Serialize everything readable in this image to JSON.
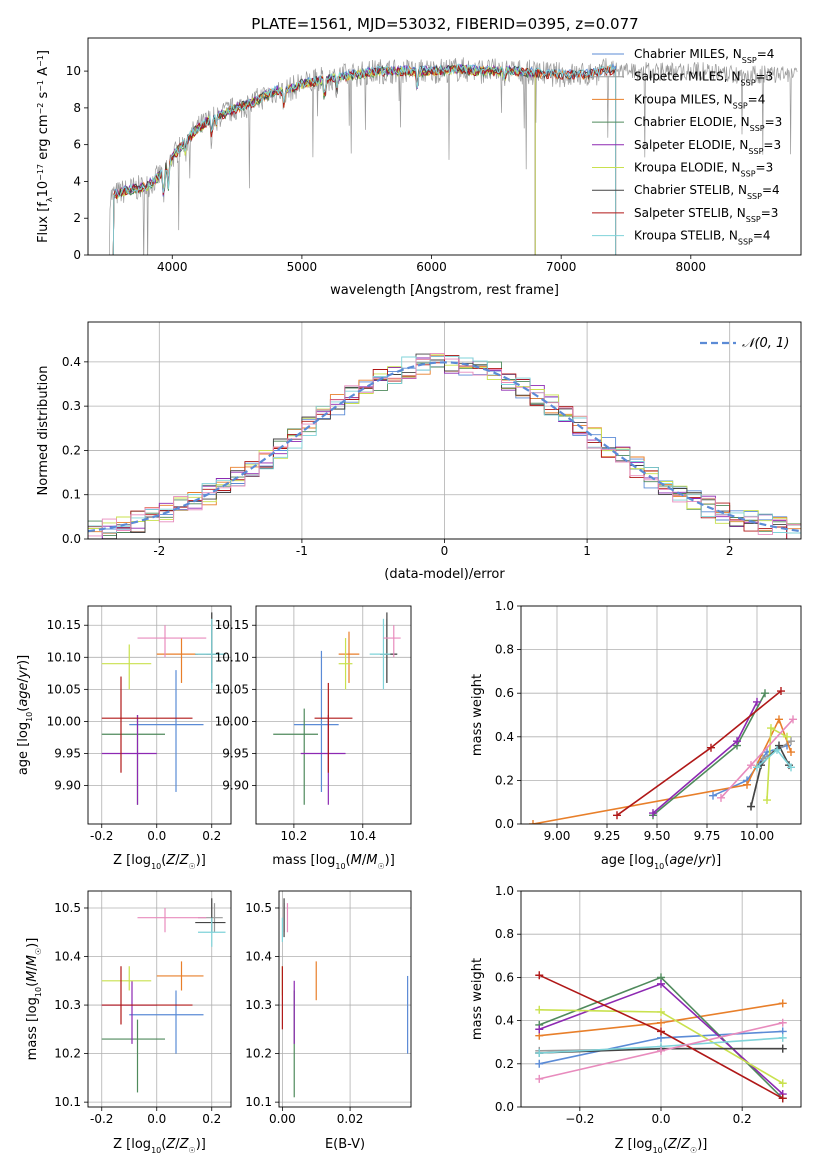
{
  "figure": {
    "title": "PLATE=1561, MJD=53032, FIBERID=0395, z=0.077"
  },
  "colors": {
    "chabrier_miles": "#5b8bd6",
    "salpeter_miles": "#9a9a9a",
    "kroupa_miles": "#e87f2a",
    "chabrier_elodie": "#4f8a5c",
    "salpeter_elodie": "#8d29b2",
    "kroupa_elodie": "#c9e14e",
    "chabrier_stelib": "#444444",
    "salpeter_stelib": "#b01818",
    "kroupa_stelib": "#7fd3d9",
    "pink": "#e88bbd",
    "normal_curve": "#5b8bd6"
  },
  "chart_data": [
    {
      "type": "line",
      "panel": "spectrum",
      "title": "PLATE=1561, MJD=53032, FIBERID=0395, z=0.077",
      "xlabel": "wavelength [Angstrom, rest frame]",
      "ylabel": "Flux [fλ 10⁻¹⁷ erg cm⁻² s⁻¹ A⁻¹]",
      "xlim": [
        3350,
        8850
      ],
      "ylim": [
        0,
        11.8
      ],
      "xticks": [
        4000,
        5000,
        6000,
        7000,
        8000
      ],
      "yticks": [
        0,
        2,
        4,
        6,
        8,
        10
      ],
      "legend_position": "right",
      "series": [
        {
          "name": "Chabrier MILES, N_SSP=4",
          "color_key": "chabrier_miles"
        },
        {
          "name": "Salpeter MILES, N_SSP=3",
          "color_key": "salpeter_miles"
        },
        {
          "name": "Kroupa MILES, N_SSP=4",
          "color_key": "kroupa_miles"
        },
        {
          "name": "Chabrier ELODIE, N_SSP=3",
          "color_key": "chabrier_elodie"
        },
        {
          "name": "Salpeter ELODIE, N_SSP=3",
          "color_key": "salpeter_elodie"
        },
        {
          "name": "Kroupa ELODIE, N_SSP=3",
          "color_key": "kroupa_elodie"
        },
        {
          "name": "Chabrier STELIB, N_SSP=4",
          "color_key": "chabrier_stelib"
        },
        {
          "name": "Salpeter STELIB, N_SSP=3",
          "color_key": "salpeter_stelib"
        },
        {
          "name": "Kroupa STELIB, N_SSP=4",
          "color_key": "kroupa_stelib"
        }
      ],
      "continuum": {
        "x": [
          3520,
          3600,
          3700,
          3800,
          3900,
          4000,
          4100,
          4200,
          4300,
          4400,
          4500,
          4600,
          4700,
          4800,
          4900,
          5000,
          5200,
          5400,
          5600,
          5800,
          6000,
          6200,
          6400,
          6600,
          6800,
          7000,
          7200,
          7400
        ],
        "y": [
          3.2,
          3.4,
          3.6,
          3.7,
          4.3,
          5.3,
          6.2,
          6.9,
          7.4,
          7.7,
          8.0,
          8.2,
          8.6,
          8.9,
          9.0,
          9.3,
          9.6,
          9.8,
          10.0,
          10.0,
          10.0,
          10.1,
          10.0,
          10.0,
          9.9,
          9.8,
          9.8,
          10.1
        ]
      }
    },
    {
      "type": "histogram",
      "panel": "residuals",
      "xlabel": "(data-model)/error",
      "ylabel": "Normed distribution",
      "xlim": [
        -2.5,
        2.5
      ],
      "ylim": [
        0,
        0.49
      ],
      "xticks": [
        -2,
        -1,
        0,
        1,
        2
      ],
      "yticks": [
        0.0,
        0.1,
        0.2,
        0.3,
        0.4
      ],
      "grid": true,
      "legend": [
        {
          "name": "𝒩(0, 1)",
          "style": "dashed",
          "color_key": "normal_curve"
        }
      ],
      "legend_position": "top-right",
      "bin_width": 0.1
    },
    {
      "type": "scatter",
      "panel": "age_vs_Z",
      "xlabel": "Z [log10(Z/Z☉)]",
      "ylabel": "age [log10(age/yr)]",
      "xlim": [
        -0.25,
        0.27
      ],
      "ylim": [
        9.84,
        10.18
      ],
      "xticks": [
        -0.2,
        0.0,
        0.2
      ],
      "yticks": [
        9.9,
        9.95,
        10.0,
        10.05,
        10.1,
        10.15
      ],
      "grid": true,
      "points": [
        {
          "c": "chabrier_miles",
          "x": 0.07,
          "y": 9.995,
          "xe": [
            -0.1,
            0.17
          ],
          "ye": [
            9.89,
            10.08
          ]
        },
        {
          "c": "salpeter_miles",
          "x": 0.2,
          "y": 10.105,
          "xe": [
            0.18,
            0.22
          ],
          "ye": [
            10.06,
            10.17
          ]
        },
        {
          "c": "kroupa_miles",
          "x": 0.09,
          "y": 10.105,
          "xe": [
            0.0,
            0.15
          ],
          "ye": [
            10.06,
            10.13
          ]
        },
        {
          "c": "chabrier_elodie",
          "x": -0.07,
          "y": 9.98,
          "xe": [
            -0.2,
            0.03
          ],
          "ye": [
            9.87,
            10.01
          ]
        },
        {
          "c": "salpeter_elodie",
          "x": -0.07,
          "y": 9.95,
          "xe": [
            -0.2,
            0.0
          ],
          "ye": [
            9.87,
            10.01
          ]
        },
        {
          "c": "kroupa_elodie",
          "x": -0.1,
          "y": 10.09,
          "xe": [
            -0.2,
            -0.02
          ],
          "ye": [
            10.05,
            10.12
          ]
        },
        {
          "c": "chabrier_stelib",
          "x": 0.2,
          "y": 10.105,
          "xe": [
            0.14,
            0.25
          ],
          "ye": [
            10.06,
            10.17
          ]
        },
        {
          "c": "salpeter_stelib",
          "x": -0.13,
          "y": 10.005,
          "xe": [
            -0.2,
            0.13
          ],
          "ye": [
            9.92,
            10.07
          ]
        },
        {
          "c": "kroupa_stelib",
          "x": 0.2,
          "y": 10.105,
          "xe": [
            0.14,
            0.25
          ],
          "ye": [
            10.05,
            10.16
          ]
        },
        {
          "c": "pink",
          "x": 0.03,
          "y": 10.13,
          "xe": [
            -0.07,
            0.18
          ],
          "ye": [
            10.1,
            10.15
          ]
        }
      ]
    },
    {
      "type": "scatter",
      "panel": "age_vs_mass",
      "xlabel": "mass [log10(M/M☉)]",
      "ylabel": "",
      "xlim": [
        10.09,
        10.54
      ],
      "ylim": [
        9.84,
        10.18
      ],
      "xticks": [
        10.2,
        10.4
      ],
      "yticks": [
        9.9,
        9.95,
        10.0,
        10.05,
        10.1,
        10.15
      ],
      "grid": true,
      "points": [
        {
          "c": "chabrier_miles",
          "x": 10.28,
          "y": 9.995,
          "xe": [
            10.2,
            10.33
          ],
          "ye": [
            9.89,
            10.11
          ]
        },
        {
          "c": "salpeter_miles",
          "x": 10.47,
          "y": 10.105,
          "xe": [
            10.45,
            10.5
          ],
          "ye": [
            10.06,
            10.16
          ]
        },
        {
          "c": "kroupa_miles",
          "x": 10.36,
          "y": 10.105,
          "xe": [
            10.33,
            10.39
          ],
          "ye": [
            10.06,
            10.14
          ]
        },
        {
          "c": "chabrier_elodie",
          "x": 10.23,
          "y": 9.98,
          "xe": [
            10.14,
            10.27
          ],
          "ye": [
            9.87,
            10.02
          ]
        },
        {
          "c": "salpeter_elodie",
          "x": 10.3,
          "y": 9.95,
          "xe": [
            10.22,
            10.35
          ],
          "ye": [
            9.87,
            10.01
          ]
        },
        {
          "c": "kroupa_elodie",
          "x": 10.35,
          "y": 10.09,
          "xe": [
            10.33,
            10.37
          ],
          "ye": [
            10.05,
            10.13
          ]
        },
        {
          "c": "chabrier_stelib",
          "x": 10.47,
          "y": 10.105,
          "xe": [
            10.45,
            10.5
          ],
          "ye": [
            10.06,
            10.17
          ]
        },
        {
          "c": "salpeter_stelib",
          "x": 10.3,
          "y": 10.005,
          "xe": [
            10.26,
            10.37
          ],
          "ye": [
            9.92,
            10.06
          ]
        },
        {
          "c": "kroupa_stelib",
          "x": 10.46,
          "y": 10.105,
          "xe": [
            10.42,
            10.48
          ],
          "ye": [
            10.05,
            10.16
          ]
        },
        {
          "c": "pink",
          "x": 10.49,
          "y": 10.13,
          "xe": [
            10.46,
            10.51
          ],
          "ye": [
            10.1,
            10.15
          ]
        }
      ]
    },
    {
      "type": "line",
      "panel": "massweight_vs_age",
      "xlabel": "age [log10(age/yr)]",
      "ylabel": "mass weight",
      "xlim": [
        8.82,
        10.22
      ],
      "ylim": [
        0,
        1
      ],
      "xticks": [
        9.0,
        9.25,
        9.5,
        9.75,
        10.0
      ],
      "yticks": [
        0.0,
        0.2,
        0.4,
        0.6,
        0.8,
        1.0
      ],
      "grid": true,
      "series": [
        {
          "c": "chabrier_miles",
          "x": [
            9.78,
            9.95,
            10.05,
            10.15
          ],
          "y": [
            0.13,
            0.2,
            0.33,
            0.36
          ]
        },
        {
          "c": "salpeter_miles",
          "x": [
            9.97,
            10.03,
            10.17
          ],
          "y": [
            0.08,
            0.3,
            0.38
          ]
        },
        {
          "c": "kroupa_miles",
          "x": [
            8.88,
            9.95,
            10.11,
            10.17
          ],
          "y": [
            0.0,
            0.18,
            0.48,
            0.33
          ]
        },
        {
          "c": "chabrier_elodie",
          "x": [
            9.48,
            9.9,
            10.04
          ],
          "y": [
            0.04,
            0.36,
            0.6
          ]
        },
        {
          "c": "salpeter_elodie",
          "x": [
            9.48,
            9.9,
            10.0
          ],
          "y": [
            0.05,
            0.38,
            0.56
          ]
        },
        {
          "c": "kroupa_elodie",
          "x": [
            10.05,
            10.07,
            10.15
          ],
          "y": [
            0.11,
            0.44,
            0.4
          ]
        },
        {
          "c": "chabrier_stelib",
          "x": [
            9.97,
            10.02,
            10.11,
            10.16
          ],
          "y": [
            0.08,
            0.27,
            0.36,
            0.27
          ]
        },
        {
          "c": "salpeter_stelib",
          "x": [
            9.3,
            9.77,
            10.12
          ],
          "y": [
            0.04,
            0.35,
            0.61
          ]
        },
        {
          "c": "kroupa_stelib",
          "x": [
            10.0,
            10.1,
            10.17
          ],
          "y": [
            0.26,
            0.34,
            0.26
          ]
        },
        {
          "c": "pink",
          "x": [
            9.82,
            9.97,
            10.18
          ],
          "y": [
            0.12,
            0.27,
            0.48
          ]
        }
      ]
    },
    {
      "type": "scatter",
      "panel": "mass_vs_Z",
      "xlabel": "Z [log10(Z/Z☉)]",
      "ylabel": "mass [log10(M/M☉)]",
      "xlim": [
        -0.25,
        0.27
      ],
      "ylim": [
        10.09,
        10.535
      ],
      "xticks": [
        -0.2,
        0.0,
        0.2
      ],
      "yticks": [
        10.1,
        10.2,
        10.3,
        10.4,
        10.5
      ],
      "grid": true,
      "points": [
        {
          "c": "chabrier_miles",
          "x": 0.07,
          "y": 10.28,
          "xe": [
            -0.1,
            0.17
          ],
          "ye": [
            10.2,
            10.33
          ]
        },
        {
          "c": "salpeter_miles",
          "x": 0.21,
          "y": 10.48,
          "xe": [
            0.15,
            0.24
          ],
          "ye": [
            10.45,
            10.51
          ]
        },
        {
          "c": "kroupa_miles",
          "x": 0.09,
          "y": 10.36,
          "xe": [
            0.0,
            0.17
          ],
          "ye": [
            10.33,
            10.39
          ]
        },
        {
          "c": "chabrier_elodie",
          "x": -0.07,
          "y": 10.23,
          "xe": [
            -0.2,
            0.03
          ],
          "ye": [
            10.12,
            10.27
          ]
        },
        {
          "c": "salpeter_elodie",
          "x": -0.09,
          "y": 10.3,
          "xe": [
            -0.2,
            0.0
          ],
          "ye": [
            10.22,
            10.35
          ]
        },
        {
          "c": "kroupa_elodie",
          "x": -0.1,
          "y": 10.35,
          "xe": [
            -0.2,
            -0.02
          ],
          "ye": [
            10.33,
            10.38
          ]
        },
        {
          "c": "chabrier_stelib",
          "x": 0.2,
          "y": 10.47,
          "xe": [
            0.14,
            0.25
          ],
          "ye": [
            10.45,
            10.52
          ]
        },
        {
          "c": "salpeter_stelib",
          "x": -0.13,
          "y": 10.3,
          "xe": [
            -0.2,
            0.13
          ],
          "ye": [
            10.26,
            10.38
          ]
        },
        {
          "c": "kroupa_stelib",
          "x": 0.2,
          "y": 10.45,
          "xe": [
            0.15,
            0.25
          ],
          "ye": [
            10.42,
            10.48
          ]
        },
        {
          "c": "pink",
          "x": 0.03,
          "y": 10.48,
          "xe": [
            -0.07,
            0.18
          ],
          "ye": [
            10.45,
            10.5
          ]
        }
      ]
    },
    {
      "type": "scatter",
      "panel": "mass_vs_ebv",
      "xlabel": "E(B-V)",
      "ylabel": "",
      "xlim": [
        -0.001,
        0.038
      ],
      "ylim": [
        10.09,
        10.535
      ],
      "xticks": [
        0.0,
        0.02
      ],
      "yticks": [
        10.1,
        10.2,
        10.3,
        10.4,
        10.5
      ],
      "grid": true,
      "points": [
        {
          "c": "chabrier_miles",
          "x": 0.037,
          "y": 10.28,
          "ye": [
            10.2,
            10.36
          ]
        },
        {
          "c": "salpeter_miles",
          "x": 0.0005,
          "y": 10.48,
          "ye": [
            10.45,
            10.51
          ]
        },
        {
          "c": "kroupa_miles",
          "x": 0.01,
          "y": 10.36,
          "ye": [
            10.31,
            10.39
          ]
        },
        {
          "c": "chabrier_elodie",
          "x": 0.0035,
          "y": 10.23,
          "ye": [
            10.11,
            10.33
          ]
        },
        {
          "c": "salpeter_elodie",
          "x": 0.0035,
          "y": 10.3,
          "ye": [
            10.22,
            10.35
          ]
        },
        {
          "c": "kroupa_elodie",
          "x": 0.0,
          "y": 10.35,
          "ye": [
            10.32,
            10.38
          ]
        },
        {
          "c": "chabrier_stelib",
          "x": 0.0005,
          "y": 10.47,
          "ye": [
            10.44,
            10.52
          ]
        },
        {
          "c": "salpeter_stelib",
          "x": 0.0,
          "y": 10.3,
          "ye": [
            10.25,
            10.38
          ]
        },
        {
          "c": "kroupa_stelib",
          "x": 0.0,
          "y": 10.45,
          "ye": [
            10.43,
            10.48
          ]
        },
        {
          "c": "pink",
          "x": 0.0015,
          "y": 10.48,
          "ye": [
            10.45,
            10.51
          ]
        }
      ]
    },
    {
      "type": "line",
      "panel": "massweight_vs_Z",
      "xlabel": "Z [log10(Z/Z☉)]",
      "ylabel": "mass weight",
      "xlim": [
        -0.345,
        0.345
      ],
      "ylim": [
        0,
        1
      ],
      "xticks": [
        -0.2,
        0.0,
        0.2
      ],
      "yticks": [
        0.0,
        0.2,
        0.4,
        0.6,
        0.8,
        1.0
      ],
      "grid": true,
      "series": [
        {
          "c": "chabrier_miles",
          "x": [
            -0.3,
            0.0,
            0.3
          ],
          "y": [
            0.2,
            0.32,
            0.35
          ]
        },
        {
          "c": "salpeter_miles",
          "x": [
            -0.3,
            0.0,
            0.3
          ],
          "y": [
            0.26,
            0.27,
            0.27
          ]
        },
        {
          "c": "kroupa_miles",
          "x": [
            -0.3,
            0.0,
            0.3
          ],
          "y": [
            0.33,
            0.39,
            0.48
          ]
        },
        {
          "c": "chabrier_elodie",
          "x": [
            -0.3,
            0.0,
            0.3
          ],
          "y": [
            0.38,
            0.6,
            0.04
          ]
        },
        {
          "c": "salpeter_elodie",
          "x": [
            -0.3,
            0.0,
            0.3
          ],
          "y": [
            0.36,
            0.57,
            0.06
          ]
        },
        {
          "c": "kroupa_elodie",
          "x": [
            -0.3,
            0.0,
            0.3
          ],
          "y": [
            0.45,
            0.44,
            0.11
          ]
        },
        {
          "c": "chabrier_stelib",
          "x": [
            -0.3,
            0.0,
            0.3
          ],
          "y": [
            0.25,
            0.27,
            0.27
          ]
        },
        {
          "c": "salpeter_stelib",
          "x": [
            -0.3,
            0.0,
            0.3
          ],
          "y": [
            0.61,
            0.35,
            0.04
          ]
        },
        {
          "c": "kroupa_stelib",
          "x": [
            -0.3,
            0.0,
            0.3
          ],
          "y": [
            0.25,
            0.28,
            0.32
          ]
        },
        {
          "c": "pink",
          "x": [
            -0.3,
            0.0,
            0.3
          ],
          "y": [
            0.13,
            0.26,
            0.39
          ]
        }
      ]
    }
  ]
}
